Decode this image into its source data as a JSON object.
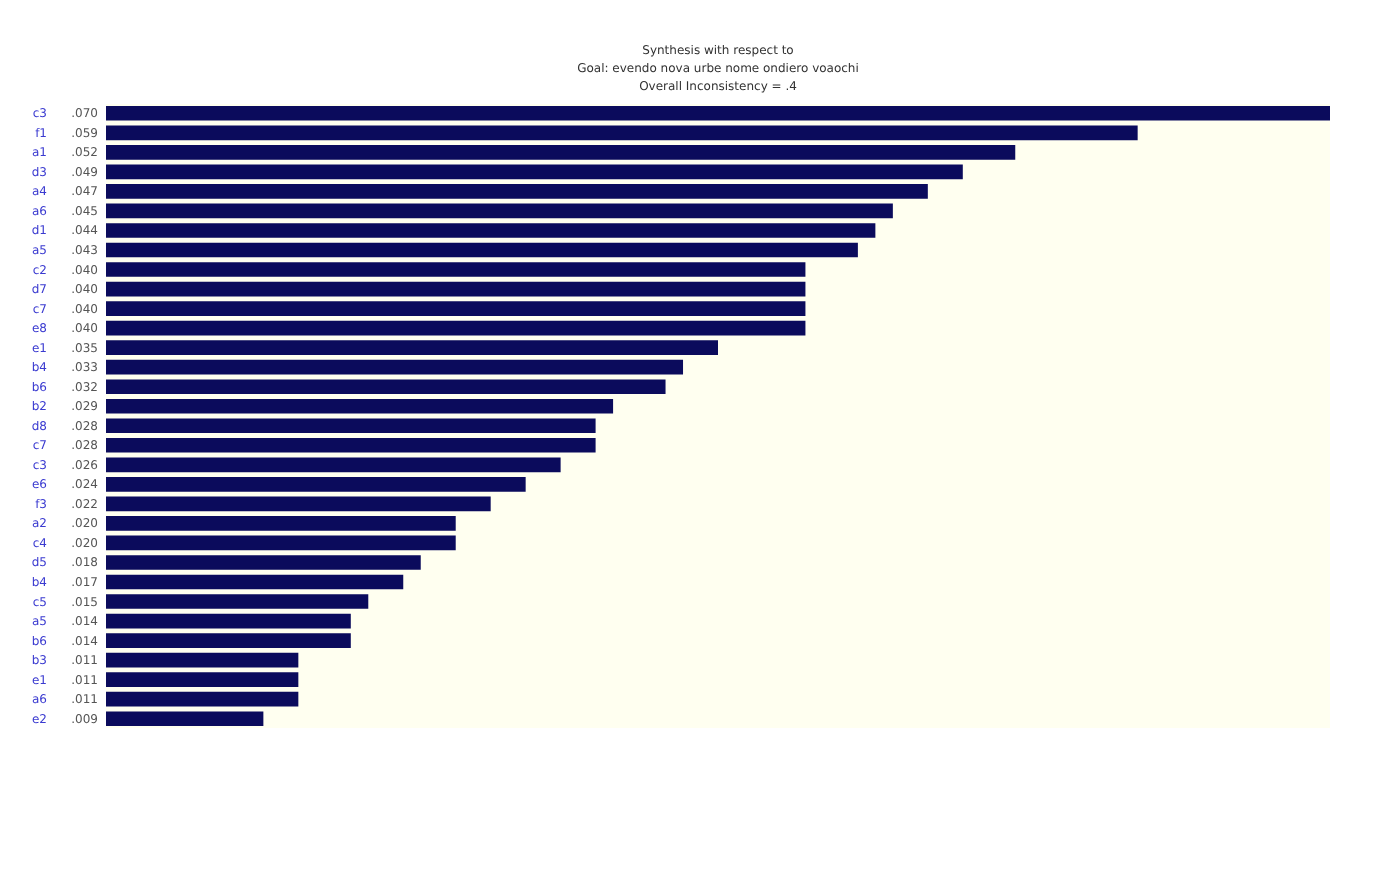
{
  "chart_data": {
    "type": "bar",
    "orientation": "horizontal",
    "title": [
      "Synthesis with respect to",
      "Goal: evendo nova urbe nome ondiero voaochi",
      "Overall Inconsistency = .4"
    ],
    "categories": [
      "c3",
      "f1",
      "a1",
      "d3",
      "a4",
      "a6",
      "d1",
      "a5",
      "c2",
      "d7",
      "c7",
      "e8",
      "e1",
      "b4",
      "b6",
      "b2",
      "d8",
      "c7",
      "c3",
      "e6",
      "f3",
      "a2",
      "c4",
      "d5",
      "b4",
      "c5",
      "a5",
      "b6",
      "b3",
      "e1",
      "a6",
      "e2"
    ],
    "values": [
      0.07,
      0.059,
      0.052,
      0.049,
      0.047,
      0.045,
      0.044,
      0.043,
      0.04,
      0.04,
      0.04,
      0.04,
      0.035,
      0.033,
      0.032,
      0.029,
      0.028,
      0.028,
      0.026,
      0.024,
      0.022,
      0.02,
      0.02,
      0.018,
      0.017,
      0.015,
      0.014,
      0.014,
      0.011,
      0.011,
      0.011,
      0.009
    ],
    "value_labels": [
      ".070",
      ".059",
      ".052",
      ".049",
      ".047",
      ".045",
      ".044",
      ".043",
      ".040",
      ".040",
      ".040",
      ".040",
      ".035",
      ".033",
      ".032",
      ".029",
      ".028",
      ".028",
      ".026",
      ".024",
      ".022",
      ".020",
      ".020",
      ".018",
      ".017",
      ".015",
      ".014",
      ".014",
      ".011",
      ".011",
      ".011",
      ".009"
    ],
    "color": "#0b0b5c"
  }
}
